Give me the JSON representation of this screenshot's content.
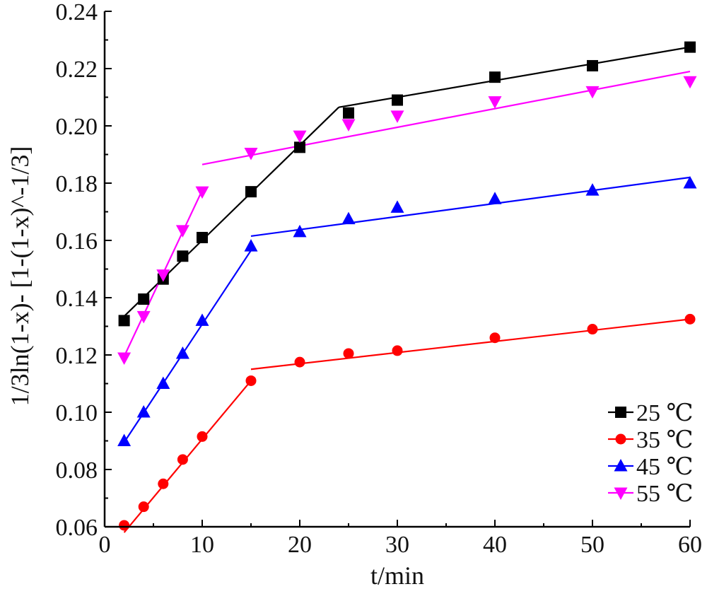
{
  "chart_data": {
    "type": "scatter",
    "xlabel": "t/min",
    "ylabel": "1/3ln(1-x)- [1-(1-x)^-1/3]",
    "xlim": [
      0,
      60
    ],
    "ylim": [
      0.06,
      0.24
    ],
    "xticks": [
      "0",
      "10",
      "20",
      "30",
      "40",
      "50",
      "60"
    ],
    "yticks": [
      "0.06",
      "0.08",
      "0.10",
      "0.12",
      "0.14",
      "0.16",
      "0.18",
      "0.20",
      "0.22",
      "0.24"
    ],
    "grid": false,
    "legend_position": "bottom-right",
    "series": [
      {
        "name": "25 ℃",
        "color": "#000000",
        "marker": "square",
        "x": [
          2,
          4,
          6,
          8,
          10,
          15,
          20,
          25,
          30,
          40,
          50,
          60
        ],
        "y": [
          0.132,
          0.1395,
          0.1465,
          0.1545,
          0.161,
          0.177,
          0.1925,
          0.2045,
          0.209,
          0.217,
          0.221,
          0.2275
        ],
        "fit_segments": [
          [
            [
              2,
              0.1335
            ],
            [
              24,
              0.2065
            ]
          ],
          [
            [
              24,
              0.2065
            ],
            [
              60,
              0.2275
            ]
          ]
        ]
      },
      {
        "name": "35 ℃",
        "color": "#ff0000",
        "marker": "circle",
        "x": [
          2,
          4,
          6,
          8,
          10,
          15,
          20,
          25,
          30,
          40,
          50,
          60
        ],
        "y": [
          0.0605,
          0.067,
          0.075,
          0.0835,
          0.0915,
          0.111,
          0.1175,
          0.1205,
          0.1215,
          0.126,
          0.129,
          0.1325
        ],
        "fit_segments": [
          [
            [
              2,
              0.058
            ],
            [
              15,
              0.111
            ]
          ],
          [
            [
              15,
              0.115
            ],
            [
              60,
              0.1325
            ]
          ]
        ]
      },
      {
        "name": "45 ℃",
        "color": "#0000ff",
        "marker": "triangle-up",
        "x": [
          2,
          4,
          6,
          8,
          10,
          15,
          20,
          25,
          30,
          40,
          50,
          60
        ],
        "y": [
          0.09,
          0.1,
          0.11,
          0.1205,
          0.132,
          0.158,
          0.163,
          0.1675,
          0.1715,
          0.1745,
          0.1775,
          0.18
        ],
        "fit_segments": [
          [
            [
              2,
              0.0895
            ],
            [
              15,
              0.1565
            ]
          ],
          [
            [
              15,
              0.1615
            ],
            [
              60,
              0.182
            ]
          ]
        ]
      },
      {
        "name": "55 ℃",
        "color": "#ff00ff",
        "marker": "triangle-down",
        "x": [
          2,
          4,
          6,
          8,
          10,
          15,
          20,
          25,
          30,
          40,
          50,
          60
        ],
        "y": [
          0.119,
          0.1335,
          0.148,
          0.1635,
          0.177,
          0.1905,
          0.1965,
          0.2005,
          0.2035,
          0.2085,
          0.212,
          0.2155
        ],
        "fit_segments": [
          [
            [
              2,
              0.1195
            ],
            [
              10,
              0.1775
            ]
          ],
          [
            [
              10,
              0.1865
            ],
            [
              60,
              0.219
            ]
          ]
        ]
      }
    ]
  }
}
